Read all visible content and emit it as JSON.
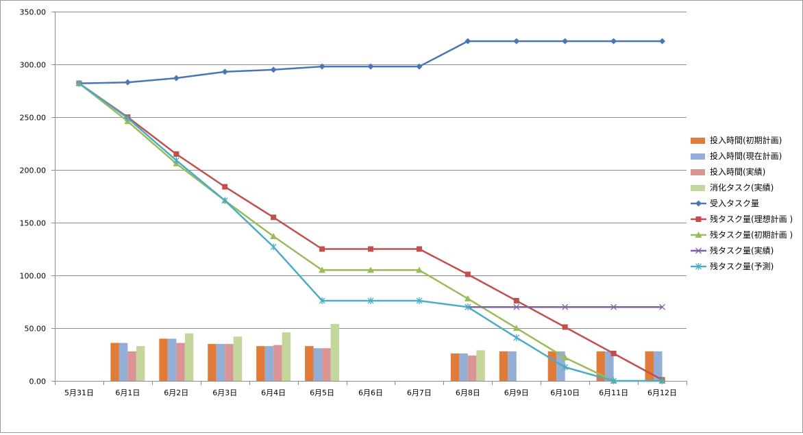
{
  "chart_data": {
    "type": "bar",
    "categories": [
      "5月31日",
      "6月1日",
      "6月2日",
      "6月3日",
      "6月4日",
      "6月5日",
      "6月6日",
      "6月7日",
      "6月8日",
      "6月9日",
      "6月10日",
      "6月11日",
      "6月12日"
    ],
    "ylim": [
      0,
      350
    ],
    "y_ticks": [
      "0.00",
      "50.00",
      "100.00",
      "150.00",
      "200.00",
      "250.00",
      "300.00",
      "350.00"
    ],
    "y_tick_values": [
      0,
      50,
      100,
      150,
      200,
      250,
      300,
      350
    ],
    "grid": true,
    "legend_position": "right",
    "bar_series": [
      {
        "name": "投入時間(初期計画)",
        "color": "#e07b39",
        "values": [
          null,
          36,
          40,
          35,
          33,
          33,
          null,
          null,
          26,
          28,
          28,
          28,
          28
        ]
      },
      {
        "name": "投入時間(現在計画)",
        "color": "#95aed6",
        "values": [
          null,
          36,
          40,
          35,
          33,
          31,
          null,
          null,
          26,
          28,
          28,
          28,
          28
        ]
      },
      {
        "name": "投入時間(実績)",
        "color": "#d99594",
        "values": [
          null,
          28,
          36,
          35,
          34,
          31,
          null,
          null,
          24,
          null,
          null,
          null,
          null
        ]
      },
      {
        "name": "消化タスク(実績)",
        "color": "#c3d69b",
        "values": [
          null,
          33,
          45,
          42,
          46,
          54,
          null,
          null,
          29,
          null,
          null,
          null,
          null
        ]
      }
    ],
    "line_series": [
      {
        "name": "受入タスク量",
        "color": "#4a76b3",
        "marker": "diamond",
        "values": [
          282,
          283,
          287,
          293,
          295,
          298,
          298,
          298,
          322,
          322,
          322,
          322,
          322
        ]
      },
      {
        "name": "残タスク量(理想計画 )",
        "color": "#c0504d",
        "marker": "square",
        "values": [
          282,
          250,
          215,
          184,
          155,
          125,
          125,
          125,
          101,
          76,
          51,
          26,
          1
        ]
      },
      {
        "name": "残タスク量(初期計画 )",
        "color": "#9bbb59",
        "marker": "triangle",
        "values": [
          282,
          246,
          206,
          171,
          137,
          105,
          105,
          105,
          78,
          50,
          22,
          0,
          0
        ]
      },
      {
        "name": "残タスク量(実績)",
        "color": "#7f5fa6",
        "marker": "x",
        "values": [
          null,
          null,
          null,
          null,
          null,
          null,
          null,
          null,
          70,
          70,
          70,
          70,
          70
        ]
      },
      {
        "name": "残タスク量(予測)",
        "color": "#4aacc5",
        "marker": "star",
        "values": [
          282,
          249,
          209,
          171,
          127,
          76,
          76,
          76,
          70,
          41,
          13,
          0,
          0
        ]
      }
    ]
  }
}
